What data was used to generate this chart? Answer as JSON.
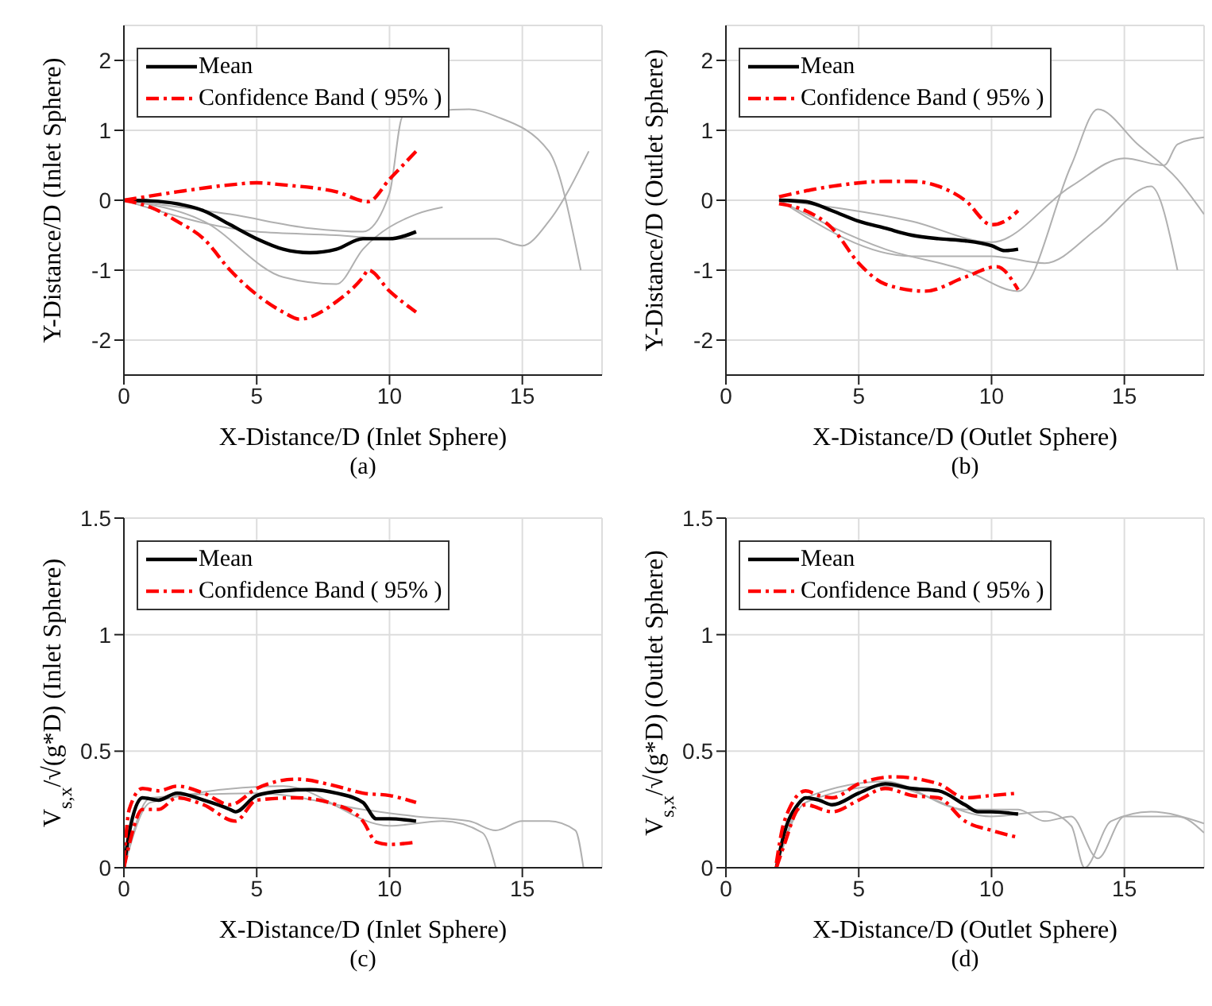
{
  "chart_data": [
    {
      "type": "line",
      "xlabel": "X-Distance/D (Inlet Sphere)",
      "ylabel": "Y-Distance/D (Inlet Sphere)",
      "annotations": [
        "(a)"
      ],
      "xlim": [
        0,
        18
      ],
      "ylim": [
        -2.5,
        2.5
      ],
      "xticks": [
        0,
        5,
        10,
        15
      ],
      "yticks": [
        -2,
        -1,
        0,
        1,
        2
      ],
      "grid": true,
      "legend": "top left",
      "series": [
        {
          "color": "#b0b0b0",
          "x": [
            0,
            3,
            6,
            8,
            9,
            11,
            12
          ],
          "values": [
            0,
            -0.3,
            -1.1,
            -1.2,
            -0.7,
            -0.2,
            -0.1
          ]
        },
        {
          "color": "#b0b0b0",
          "x": [
            0,
            4,
            7,
            9,
            10,
            10.5,
            13,
            14,
            16,
            17.2
          ],
          "values": [
            0,
            -0.2,
            -0.4,
            -0.45,
            0.1,
            1.2,
            1.3,
            1.2,
            0.7,
            -1
          ]
        },
        {
          "color": "#b0b0b0",
          "x": [
            0,
            5,
            8,
            10,
            13,
            14,
            15,
            16,
            17.5
          ],
          "values": [
            0,
            -0.45,
            -0.5,
            -0.55,
            -0.55,
            -0.55,
            -0.65,
            -0.3,
            0.7
          ]
        },
        {
          "name": "Mean",
          "color": "#000000",
          "line_style": "solid",
          "x": [
            0,
            1,
            2,
            3,
            4,
            5,
            6,
            7,
            8,
            9,
            10,
            11
          ],
          "values": [
            0,
            -0.01,
            -0.05,
            -0.15,
            -0.35,
            -0.55,
            -0.7,
            -0.75,
            -0.7,
            -0.55,
            -0.55,
            -0.45
          ]
        },
        {
          "name": "Confidence Band ( 95% )",
          "color": "#ff0000",
          "line_style": "dashed",
          "x": [
            0,
            2,
            4,
            5,
            6,
            8,
            9.2,
            10,
            11
          ],
          "values": [
            0,
            0.12,
            0.22,
            0.25,
            0.22,
            0.12,
            -0.02,
            0.3,
            0.7
          ]
        },
        {
          "color": "#ff0000",
          "line_style": "dashed",
          "x": [
            0,
            1,
            2,
            3,
            4,
            5,
            6,
            6.6,
            8,
            9,
            9.2,
            10,
            11
          ],
          "values": [
            0,
            -0.1,
            -0.3,
            -0.55,
            -1,
            -1.35,
            -1.6,
            -1.7,
            -1.45,
            -1.1,
            -1,
            -1.3,
            -1.6
          ]
        }
      ]
    },
    {
      "type": "line",
      "xlabel": "X-Distance/D (Outlet Sphere)",
      "ylabel": "Y-Distance/D (Outlet Sphere)",
      "annotations": [
        "(b)"
      ],
      "xlim": [
        0,
        18
      ],
      "ylim": [
        -2.5,
        2.5
      ],
      "xticks": [
        0,
        5,
        10,
        15
      ],
      "yticks": [
        -2,
        -1,
        0,
        1,
        2
      ],
      "grid": true,
      "legend": "top left",
      "series": [
        {
          "color": "#b0b0b0",
          "x": [
            2,
            6,
            9,
            11,
            13,
            14,
            15.5,
            17,
            18
          ],
          "values": [
            0,
            -0.7,
            -1,
            -1.3,
            0.5,
            1.3,
            0.8,
            0.3,
            -0.2
          ]
        },
        {
          "color": "#b0b0b0",
          "x": [
            2,
            7,
            10,
            13,
            15,
            16.5,
            17,
            18
          ],
          "values": [
            0,
            -0.3,
            -0.6,
            0.2,
            0.6,
            0.5,
            0.8,
            0.9
          ]
        },
        {
          "color": "#b0b0b0",
          "x": [
            2,
            7,
            10,
            12,
            14,
            16,
            17
          ],
          "values": [
            0,
            -0.8,
            -0.8,
            -0.9,
            -0.4,
            0.2,
            -1
          ]
        },
        {
          "name": "Mean",
          "color": "#000000",
          "line_style": "solid",
          "x": [
            2,
            3,
            4,
            5,
            6,
            7,
            8,
            9,
            10,
            10.5,
            11
          ],
          "values": [
            0,
            -0.02,
            -0.15,
            -0.3,
            -0.4,
            -0.5,
            -0.55,
            -0.58,
            -0.65,
            -0.72,
            -0.7
          ]
        },
        {
          "name": "Confidence Band ( 95% )",
          "color": "#ff0000",
          "line_style": "dashed",
          "x": [
            2,
            4,
            6,
            7,
            8,
            9,
            10,
            10.5,
            11
          ],
          "values": [
            0.05,
            0.2,
            0.27,
            0.27,
            0.2,
            0,
            -0.35,
            -0.3,
            -0.15
          ]
        },
        {
          "color": "#ff0000",
          "line_style": "dashed",
          "x": [
            2,
            3,
            4,
            5,
            6,
            7.5,
            9,
            10.2,
            11
          ],
          "values": [
            -0.05,
            -0.15,
            -0.4,
            -0.9,
            -1.2,
            -1.3,
            -1.1,
            -0.95,
            -1.28
          ]
        }
      ]
    },
    {
      "type": "line",
      "xlabel": "X-Distance/D (Inlet Sphere)",
      "ylabel": "V$_{s,x}$/√(g*D) (Inlet Sphere)",
      "annotations": [
        "(c)"
      ],
      "xlim": [
        0,
        18
      ],
      "ylim": [
        0,
        1.5
      ],
      "xticks": [
        0,
        5,
        10,
        15
      ],
      "yticks": [
        0,
        0.5,
        1,
        1.5
      ],
      "grid": true,
      "legend": "top left",
      "series": [
        {
          "color": "#b0b0b0",
          "x": [
            0,
            1,
            5,
            9,
            11,
            13,
            14,
            15,
            16,
            17,
            17.3
          ],
          "values": [
            0,
            0.3,
            0.32,
            0.25,
            0.22,
            0.2,
            0.16,
            0.2,
            0.2,
            0.16,
            0
          ]
        },
        {
          "color": "#b0b0b0",
          "x": [
            0,
            1,
            6,
            10,
            12,
            13.5,
            14
          ],
          "values": [
            0,
            0.28,
            0.35,
            0.18,
            0.2,
            0.15,
            0
          ]
        },
        {
          "name": "Mean",
          "color": "#000000",
          "line_style": "solid",
          "x": [
            0,
            0.2,
            0.7,
            1.3,
            2,
            3,
            4,
            4.2,
            5,
            6,
            7,
            8,
            9,
            9.5,
            10,
            11
          ],
          "values": [
            0,
            0.15,
            0.3,
            0.29,
            0.32,
            0.29,
            0.25,
            0.24,
            0.31,
            0.33,
            0.335,
            0.32,
            0.28,
            0.21,
            0.21,
            0.2
          ]
        },
        {
          "name": "Confidence Band ( 95% )",
          "color": "#ff0000",
          "line_style": "dashed",
          "x": [
            0,
            0.2,
            0.7,
            1.3,
            2,
            3,
            4,
            5,
            6.5,
            8,
            9,
            10,
            11
          ],
          "values": [
            0.02,
            0.25,
            0.34,
            0.33,
            0.35,
            0.32,
            0.27,
            0.34,
            0.38,
            0.35,
            0.32,
            0.31,
            0.28
          ]
        },
        {
          "color": "#ff0000",
          "line_style": "dashed",
          "x": [
            0,
            0.2,
            0.7,
            1.3,
            2,
            3,
            4.2,
            5,
            6.5,
            8,
            9,
            9.5,
            10,
            11
          ],
          "values": [
            0,
            0.1,
            0.25,
            0.25,
            0.3,
            0.27,
            0.2,
            0.29,
            0.3,
            0.27,
            0.2,
            0.11,
            0.1,
            0.11
          ]
        }
      ]
    },
    {
      "type": "line",
      "xlabel": "X-Distance/D (Outlet Sphere)",
      "ylabel": "V$_{s,x}$/√(g*D) (Outlet Sphere)",
      "annotations": [
        "(d)"
      ],
      "xlim": [
        0,
        18
      ],
      "ylim": [
        0,
        1.5
      ],
      "xticks": [
        0,
        5,
        10,
        15
      ],
      "yticks": [
        0,
        0.5,
        1,
        1.5
      ],
      "grid": true,
      "legend": "top left",
      "series": [
        {
          "color": "#b0b0b0",
          "x": [
            1.9,
            3,
            6,
            9,
            11,
            12,
            13,
            14,
            15,
            17,
            18
          ],
          "values": [
            0,
            0.3,
            0.37,
            0.25,
            0.25,
            0.2,
            0.22,
            0.04,
            0.22,
            0.22,
            0.15
          ]
        },
        {
          "color": "#b0b0b0",
          "x": [
            1.9,
            3,
            6,
            10,
            12,
            13,
            13.5,
            14.5,
            16,
            18
          ],
          "values": [
            0,
            0.28,
            0.35,
            0.22,
            0.24,
            0.18,
            0,
            0.2,
            0.24,
            0.19
          ]
        },
        {
          "name": "Mean",
          "color": "#000000",
          "line_style": "solid",
          "x": [
            1.9,
            2.2,
            2.7,
            3,
            3.5,
            4,
            5,
            6,
            7,
            8,
            9,
            9.5,
            10,
            11
          ],
          "values": [
            0,
            0.15,
            0.27,
            0.3,
            0.29,
            0.27,
            0.32,
            0.36,
            0.34,
            0.33,
            0.27,
            0.24,
            0.24,
            0.23
          ]
        },
        {
          "name": "Confidence Band ( 95% )",
          "color": "#ff0000",
          "line_style": "dashed",
          "x": [
            1.9,
            2.2,
            3,
            3.5,
            4,
            5,
            6.3,
            8,
            9,
            10,
            11
          ],
          "values": [
            0.02,
            0.2,
            0.33,
            0.31,
            0.3,
            0.36,
            0.39,
            0.36,
            0.3,
            0.31,
            0.32
          ]
        },
        {
          "color": "#ff0000",
          "line_style": "dashed",
          "x": [
            1.9,
            2.2,
            2.7,
            3,
            4,
            5,
            6,
            7,
            8,
            9,
            10,
            11
          ],
          "values": [
            0,
            0.1,
            0.25,
            0.27,
            0.24,
            0.29,
            0.34,
            0.31,
            0.3,
            0.2,
            0.16,
            0.13
          ]
        }
      ]
    }
  ]
}
